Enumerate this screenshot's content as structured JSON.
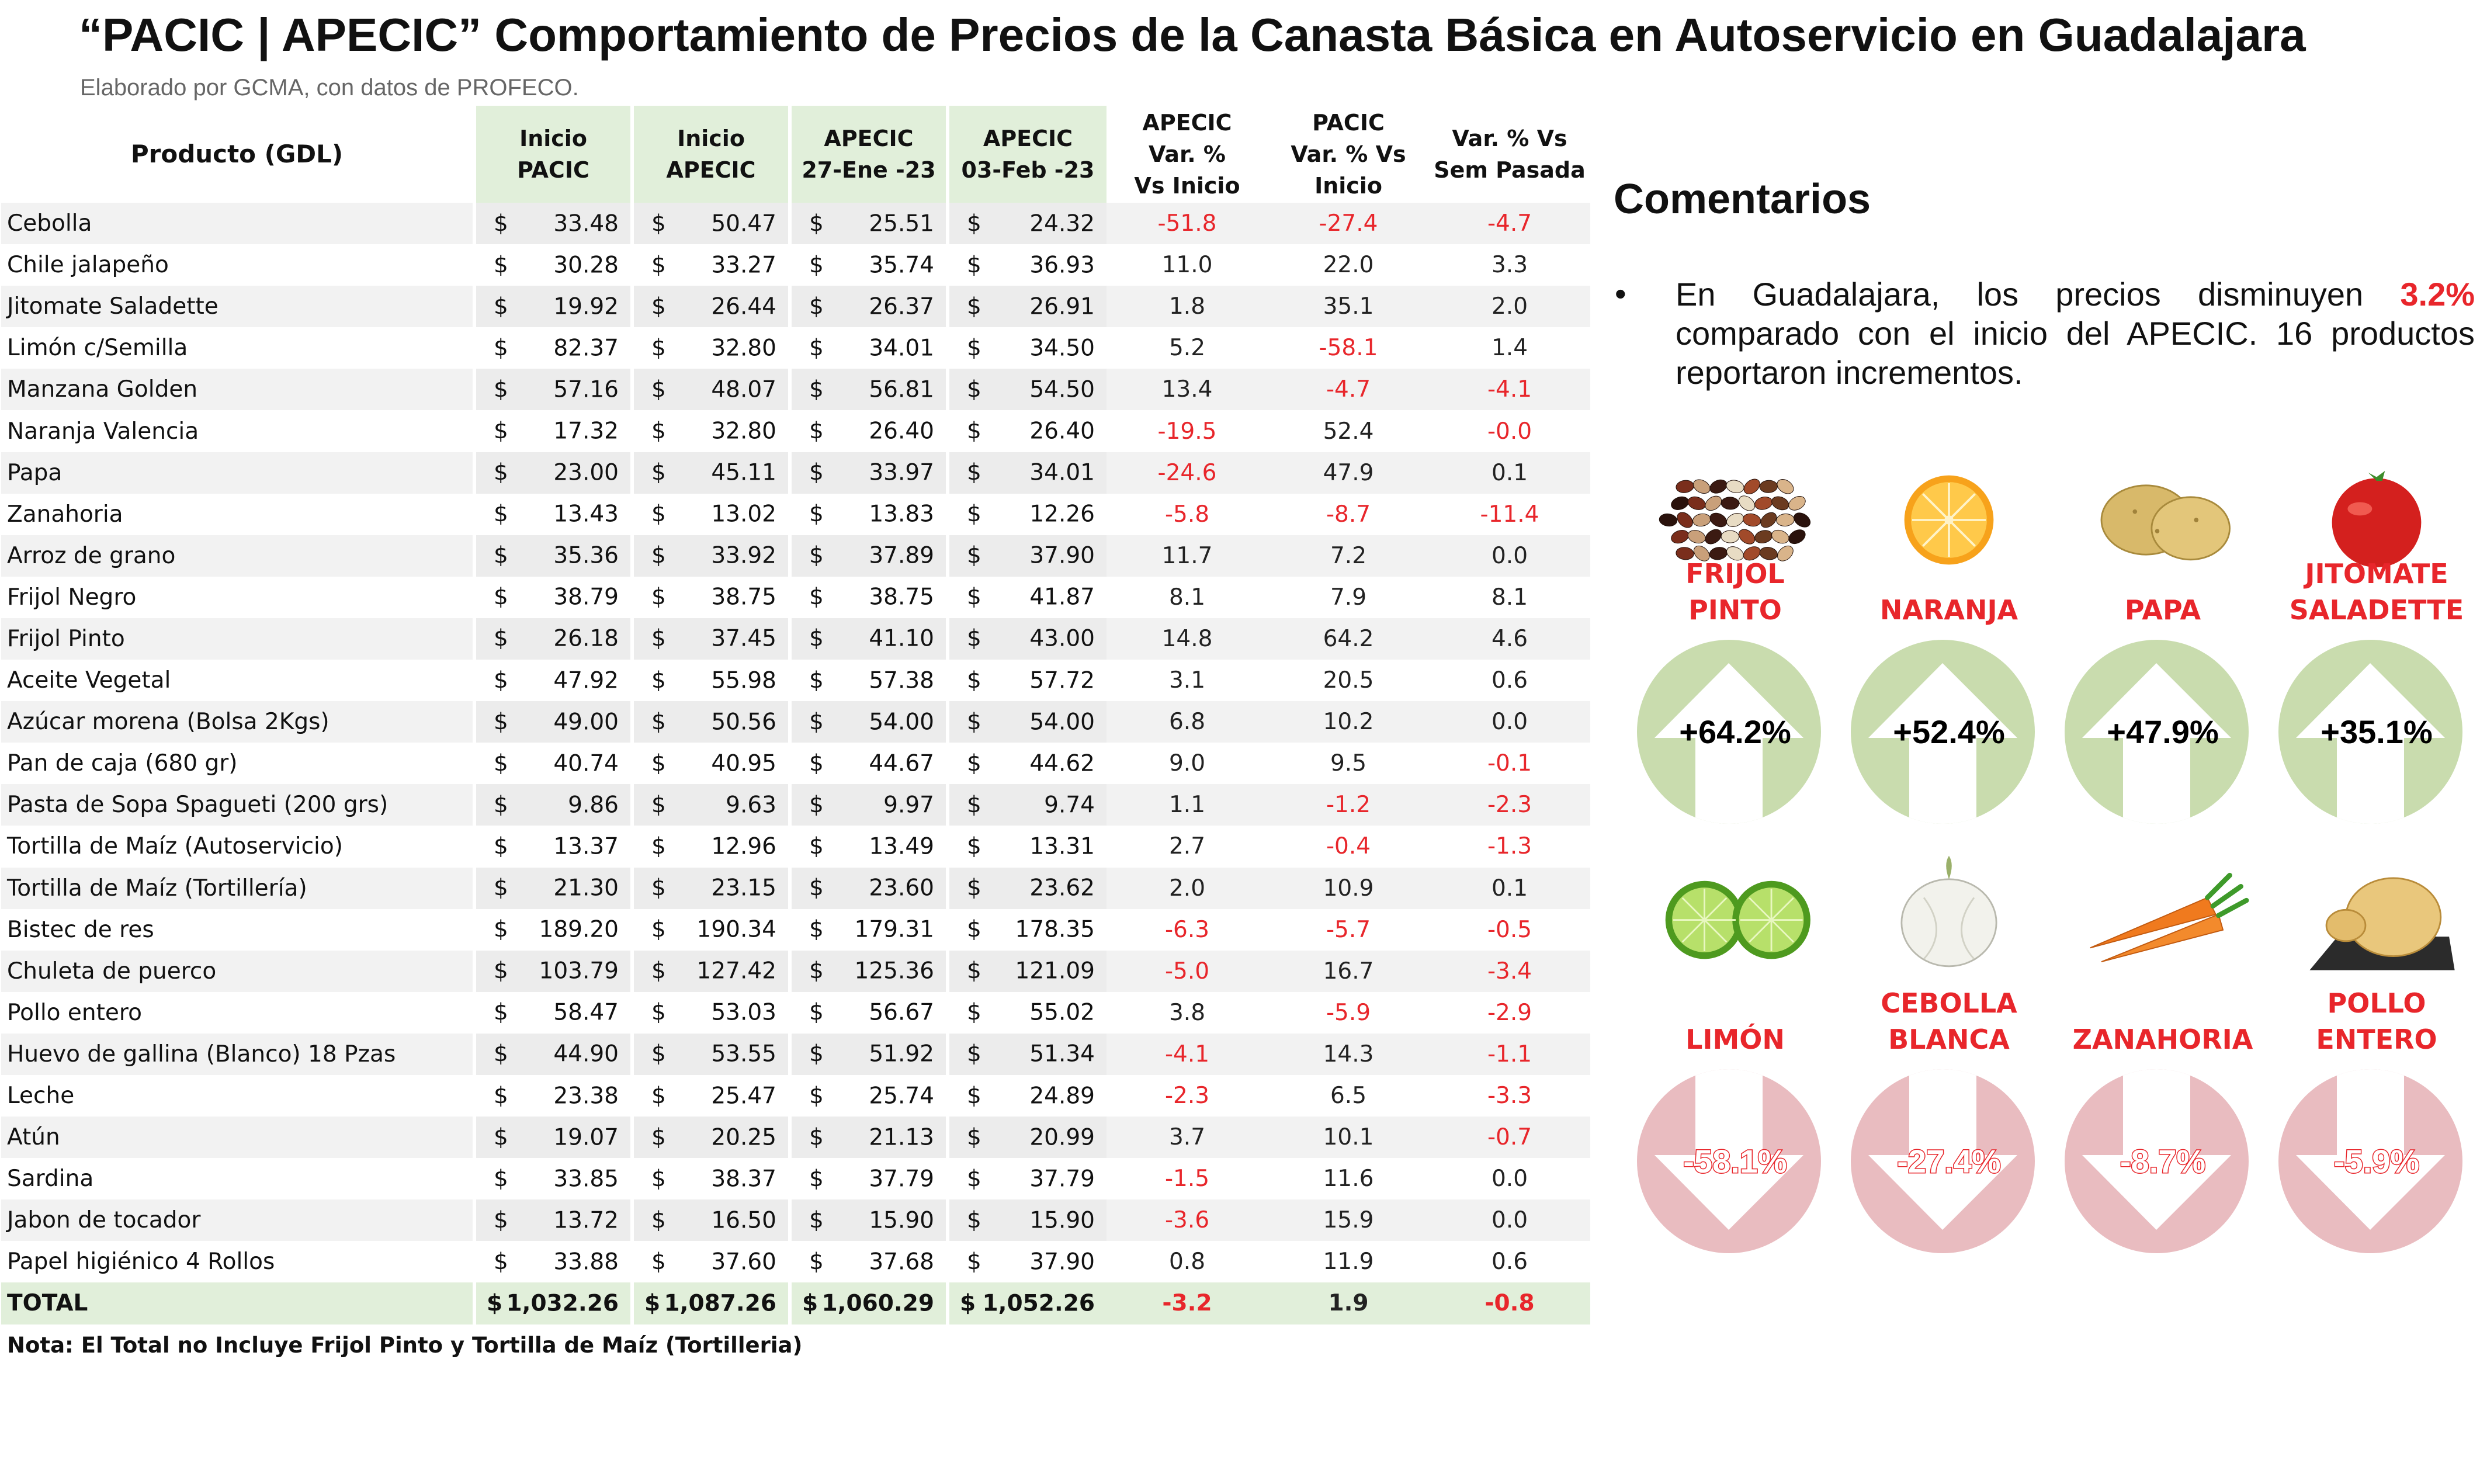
{
  "title": "“PACIC | APECIC” Comportamiento de Precios de la Canasta Básica en Autoservicio en Guadalajara",
  "subtitle": "Elaborado por GCMA, con datos de PROFECO.",
  "table": {
    "headers": {
      "producto": "Producto (GDL)",
      "inicio_pacic": "Inicio\nPACIC",
      "inicio_apecic": "Inicio\nAPECIC",
      "apecic_27ene": "APECIC\n27-Ene -23",
      "apecic_03feb": "APECIC\n03-Feb -23",
      "var_inicio": "APECIC\nVar. %\nVs  Inicio",
      "pacic_var": "PACIC\nVar. % Vs\nInicio",
      "var_sem": "Var. % Vs\nSem Pasada"
    },
    "currency": "$",
    "rows": [
      {
        "producto": "Cebolla",
        "inicio_pacic": "33.48",
        "inicio_apecic": "50.47",
        "apecic_27ene": "25.51",
        "apecic_03feb": "24.32",
        "var_inicio": "-51.8",
        "pacic_var": "-27.4",
        "var_sem": "-4.7"
      },
      {
        "producto": "Chile jalapeño",
        "inicio_pacic": "30.28",
        "inicio_apecic": "33.27",
        "apecic_27ene": "35.74",
        "apecic_03feb": "36.93",
        "var_inicio": "11.0",
        "pacic_var": "22.0",
        "var_sem": "3.3"
      },
      {
        "producto": "Jitomate Saladette",
        "inicio_pacic": "19.92",
        "inicio_apecic": "26.44",
        "apecic_27ene": "26.37",
        "apecic_03feb": "26.91",
        "var_inicio": "1.8",
        "pacic_var": "35.1",
        "var_sem": "2.0"
      },
      {
        "producto": "Limón c/Semilla",
        "inicio_pacic": "82.37",
        "inicio_apecic": "32.80",
        "apecic_27ene": "34.01",
        "apecic_03feb": "34.50",
        "var_inicio": "5.2",
        "pacic_var": "-58.1",
        "var_sem": "1.4"
      },
      {
        "producto": "Manzana Golden",
        "inicio_pacic": "57.16",
        "inicio_apecic": "48.07",
        "apecic_27ene": "56.81",
        "apecic_03feb": "54.50",
        "var_inicio": "13.4",
        "pacic_var": "-4.7",
        "var_sem": "-4.1"
      },
      {
        "producto": "Naranja Valencia",
        "inicio_pacic": "17.32",
        "inicio_apecic": "32.80",
        "apecic_27ene": "26.40",
        "apecic_03feb": "26.40",
        "var_inicio": "-19.5",
        "pacic_var": "52.4",
        "var_sem": "-0.0"
      },
      {
        "producto": "Papa",
        "inicio_pacic": "23.00",
        "inicio_apecic": "45.11",
        "apecic_27ene": "33.97",
        "apecic_03feb": "34.01",
        "var_inicio": "-24.6",
        "pacic_var": "47.9",
        "var_sem": "0.1"
      },
      {
        "producto": "Zanahoria",
        "inicio_pacic": "13.43",
        "inicio_apecic": "13.02",
        "apecic_27ene": "13.83",
        "apecic_03feb": "12.26",
        "var_inicio": "-5.8",
        "pacic_var": "-8.7",
        "var_sem": "-11.4"
      },
      {
        "producto": "Arroz de grano",
        "inicio_pacic": "35.36",
        "inicio_apecic": "33.92",
        "apecic_27ene": "37.89",
        "apecic_03feb": "37.90",
        "var_inicio": "11.7",
        "pacic_var": "7.2",
        "var_sem": "0.0"
      },
      {
        "producto": "Frijol Negro",
        "inicio_pacic": "38.79",
        "inicio_apecic": "38.75",
        "apecic_27ene": "38.75",
        "apecic_03feb": "41.87",
        "var_inicio": "8.1",
        "pacic_var": "7.9",
        "var_sem": "8.1"
      },
      {
        "producto": "Frijol Pinto",
        "inicio_pacic": "26.18",
        "inicio_apecic": "37.45",
        "apecic_27ene": "41.10",
        "apecic_03feb": "43.00",
        "var_inicio": "14.8",
        "pacic_var": "64.2",
        "var_sem": "4.6"
      },
      {
        "producto": "Aceite Vegetal",
        "inicio_pacic": "47.92",
        "inicio_apecic": "55.98",
        "apecic_27ene": "57.38",
        "apecic_03feb": "57.72",
        "var_inicio": "3.1",
        "pacic_var": "20.5",
        "var_sem": "0.6"
      },
      {
        "producto": "Azúcar morena (Bolsa 2Kgs)",
        "inicio_pacic": "49.00",
        "inicio_apecic": "50.56",
        "apecic_27ene": "54.00",
        "apecic_03feb": "54.00",
        "var_inicio": "6.8",
        "pacic_var": "10.2",
        "var_sem": "0.0"
      },
      {
        "producto": "Pan de caja (680 gr)",
        "inicio_pacic": "40.74",
        "inicio_apecic": "40.95",
        "apecic_27ene": "44.67",
        "apecic_03feb": "44.62",
        "var_inicio": "9.0",
        "pacic_var": "9.5",
        "var_sem": "-0.1"
      },
      {
        "producto": "Pasta de Sopa Spagueti (200 grs)",
        "inicio_pacic": "9.86",
        "inicio_apecic": "9.63",
        "apecic_27ene": "9.97",
        "apecic_03feb": "9.74",
        "var_inicio": "1.1",
        "pacic_var": "-1.2",
        "var_sem": "-2.3"
      },
      {
        "producto": "Tortilla de Maíz (Autoservicio)",
        "inicio_pacic": "13.37",
        "inicio_apecic": "12.96",
        "apecic_27ene": "13.49",
        "apecic_03feb": "13.31",
        "var_inicio": "2.7",
        "pacic_var": "-0.4",
        "var_sem": "-1.3"
      },
      {
        "producto": "Tortilla de Maíz (Tortillería)",
        "inicio_pacic": "21.30",
        "inicio_apecic": "23.15",
        "apecic_27ene": "23.60",
        "apecic_03feb": "23.62",
        "var_inicio": "2.0",
        "pacic_var": "10.9",
        "var_sem": "0.1"
      },
      {
        "producto": "Bistec de res",
        "inicio_pacic": "189.20",
        "inicio_apecic": "190.34",
        "apecic_27ene": "179.31",
        "apecic_03feb": "178.35",
        "var_inicio": "-6.3",
        "pacic_var": "-5.7",
        "var_sem": "-0.5"
      },
      {
        "producto": "Chuleta de puerco",
        "inicio_pacic": "103.79",
        "inicio_apecic": "127.42",
        "apecic_27ene": "125.36",
        "apecic_03feb": "121.09",
        "var_inicio": "-5.0",
        "pacic_var": "16.7",
        "var_sem": "-3.4"
      },
      {
        "producto": "Pollo entero",
        "inicio_pacic": "58.47",
        "inicio_apecic": "53.03",
        "apecic_27ene": "56.67",
        "apecic_03feb": "55.02",
        "var_inicio": "3.8",
        "pacic_var": "-5.9",
        "var_sem": "-2.9"
      },
      {
        "producto": "Huevo de gallina (Blanco) 18 Pzas",
        "inicio_pacic": "44.90",
        "inicio_apecic": "53.55",
        "apecic_27ene": "51.92",
        "apecic_03feb": "51.34",
        "var_inicio": "-4.1",
        "pacic_var": "14.3",
        "var_sem": "-1.1"
      },
      {
        "producto": "Leche",
        "inicio_pacic": "23.38",
        "inicio_apecic": "25.47",
        "apecic_27ene": "25.74",
        "apecic_03feb": "24.89",
        "var_inicio": "-2.3",
        "pacic_var": "6.5",
        "var_sem": "-3.3"
      },
      {
        "producto": "Atún",
        "inicio_pacic": "19.07",
        "inicio_apecic": "20.25",
        "apecic_27ene": "21.13",
        "apecic_03feb": "20.99",
        "var_inicio": "3.7",
        "pacic_var": "10.1",
        "var_sem": "-0.7"
      },
      {
        "producto": "Sardina",
        "inicio_pacic": "33.85",
        "inicio_apecic": "38.37",
        "apecic_27ene": "37.79",
        "apecic_03feb": "37.79",
        "var_inicio": "-1.5",
        "pacic_var": "11.6",
        "var_sem": "0.0"
      },
      {
        "producto": "Jabon de tocador",
        "inicio_pacic": "13.72",
        "inicio_apecic": "16.50",
        "apecic_27ene": "15.90",
        "apecic_03feb": "15.90",
        "var_inicio": "-3.6",
        "pacic_var": "15.9",
        "var_sem": "0.0"
      },
      {
        "producto": "Papel higiénico 4 Rollos",
        "inicio_pacic": "33.88",
        "inicio_apecic": "37.60",
        "apecic_27ene": "37.68",
        "apecic_03feb": "37.90",
        "var_inicio": "0.8",
        "pacic_var": "11.9",
        "var_sem": "0.6"
      }
    ],
    "total": {
      "producto": "TOTAL",
      "inicio_pacic": "1,032.26",
      "inicio_apecic": "1,087.26",
      "apecic_27ene": "1,060.29",
      "apecic_03feb": "1,052.26",
      "var_inicio": "-3.2",
      "pacic_var": "1.9",
      "var_sem": "-0.8"
    }
  },
  "note": "Nota: El Total no Incluye Frijol Pinto y Tortilla de Maíz (Tortilleria)",
  "comments": {
    "title": "Comentarios",
    "bullet": "•",
    "text_a": "En Guadalajara, los precios disminuyen ",
    "highlight": "3.2%",
    "text_b": " comparado con el inicio del APECIC. 16 productos reportaron incrementos."
  },
  "colors": {
    "up_circle": "#c9dcae",
    "down_circle": "#e9bcc0",
    "accent_red": "#e8262b",
    "header_green": "#e1efda"
  },
  "increases": [
    {
      "label": "FRIJOL\nPINTO",
      "value": "+64.2%",
      "icon": "beans-icon"
    },
    {
      "label": "NARANJA",
      "value": "+52.4%",
      "icon": "orange-icon"
    },
    {
      "label": "PAPA",
      "value": "+47.9%",
      "icon": "potato-icon"
    },
    {
      "label": "JITOMATE\nSALADETTE",
      "value": "+35.1%",
      "icon": "tomato-icon"
    }
  ],
  "decreases": [
    {
      "label": "LIMÓN",
      "value": "-58.1%",
      "icon": "lime-icon"
    },
    {
      "label": "CEBOLLA\nBLANCA",
      "value": "-27.4%",
      "icon": "onion-icon"
    },
    {
      "label": "ZANAHORIA",
      "value": "-8.7%",
      "icon": "carrot-icon"
    },
    {
      "label": "POLLO\nENTERO",
      "value": "-5.9%",
      "icon": "chicken-icon"
    }
  ]
}
